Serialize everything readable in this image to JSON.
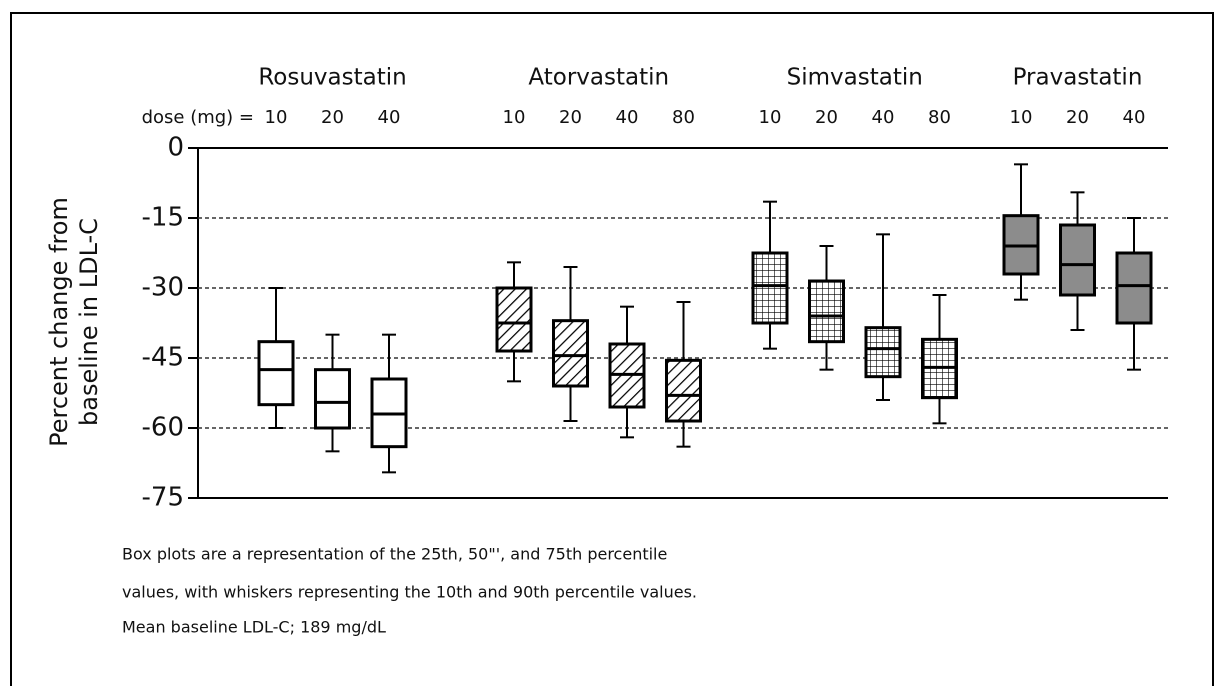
{
  "chart_data": {
    "type": "box",
    "ylabel": [
      "Percent change from",
      "baseline in LDL-C"
    ],
    "dose_label": "dose (mg) =",
    "ylim": [
      -75,
      0
    ],
    "yticks": [
      0,
      -15,
      -30,
      -45,
      -60,
      -75
    ],
    "grid": true,
    "box_order": [
      "low",
      "q1",
      "median",
      "q3",
      "high"
    ],
    "groups": [
      {
        "name": "Rosuvastatin",
        "style": "plain",
        "doses": [
          "10",
          "20",
          "40"
        ],
        "boxes": [
          [
            -60,
            -55,
            -47.5,
            -41.5,
            -30
          ],
          [
            -65,
            -60,
            -54.5,
            -47.5,
            -40
          ],
          [
            -69.5,
            -64,
            -57,
            -49.5,
            -40
          ]
        ]
      },
      {
        "name": "Atorvastatin",
        "style": "hatch",
        "doses": [
          "10",
          "20",
          "40",
          "80"
        ],
        "boxes": [
          [
            -50,
            -43.5,
            -37.5,
            -30,
            -24.5
          ],
          [
            -58.5,
            -51,
            -44.5,
            -37,
            -25.5
          ],
          [
            -62,
            -55.5,
            -48.5,
            -42,
            -34
          ],
          [
            -64,
            -58.5,
            -53,
            -45.5,
            -33
          ]
        ]
      },
      {
        "name": "Simvastatin",
        "style": "crosshatch",
        "doses": [
          "10",
          "20",
          "40",
          "80"
        ],
        "boxes": [
          [
            -43,
            -37.5,
            -29.5,
            -22.5,
            -11.5
          ],
          [
            -47.5,
            -41.5,
            -36,
            -28.5,
            -21
          ],
          [
            -54,
            -49,
            -43,
            -38.5,
            -18.5
          ],
          [
            -59,
            -53.5,
            -47,
            -41,
            -31.5
          ]
        ]
      },
      {
        "name": "Pravastatin",
        "style": "solid",
        "color": "#8c8c8c",
        "doses": [
          "10",
          "20",
          "40"
        ],
        "boxes": [
          [
            -32.5,
            -27,
            -21,
            -14.5,
            -3.5
          ],
          [
            -39,
            -31.5,
            -25,
            -16.5,
            -9.5
          ],
          [
            -47.5,
            -37.5,
            -29.5,
            -22.5,
            -15
          ]
        ]
      }
    ],
    "notes": [
      "Box plots are a representation of the 25th, 50\"', and 75th percentile",
      "values, with whiskers representing the 10th and 90th percentile values.",
      "Mean baseline LDL-C; 189 mg/dL"
    ]
  }
}
